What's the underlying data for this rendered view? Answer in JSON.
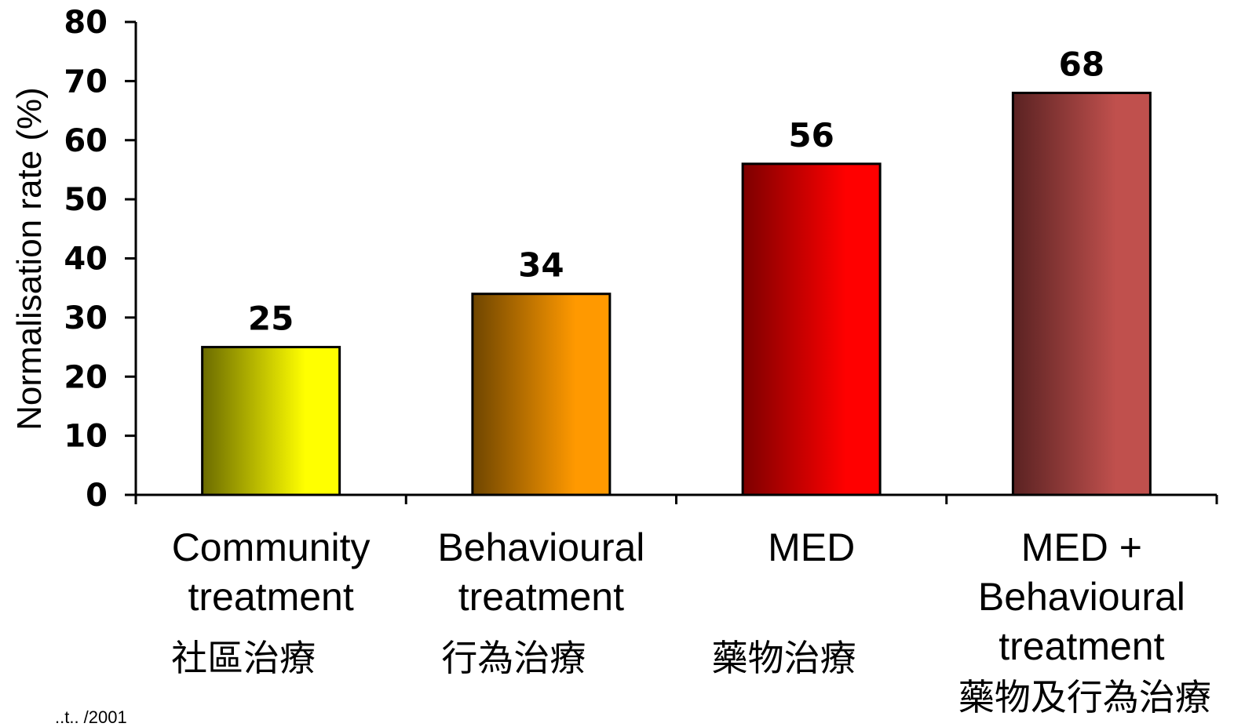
{
  "chart_data": {
    "type": "bar",
    "categories": [
      [
        "Community",
        "treatment"
      ],
      [
        "Behavioural",
        "treatment"
      ],
      [
        "MED"
      ],
      [
        "MED +",
        "Behavioural",
        "treatment"
      ]
    ],
    "categories_zh": [
      "社區治療",
      "行為治療",
      "藥物治療",
      "藥物及行為治療"
    ],
    "values": [
      25,
      34,
      56,
      68
    ],
    "data_labels": [
      "25",
      "34",
      "56",
      "68"
    ],
    "ylabel": "Normalisation rate (%)",
    "ylim": [
      0,
      80
    ],
    "yticks": [
      0,
      10,
      20,
      30,
      40,
      50,
      60,
      70,
      80
    ],
    "grid": false,
    "legend": "none",
    "bar_colors": [
      {
        "dark": "#6b6b00",
        "light": "#ffff00"
      },
      {
        "dark": "#6e4500",
        "light": "#ff9900"
      },
      {
        "dark": "#7d0000",
        "light": "#ff0000"
      },
      {
        "dark": "#5a2222",
        "light": "#c0504d"
      }
    ],
    "footnote": "..t.. /2001"
  }
}
